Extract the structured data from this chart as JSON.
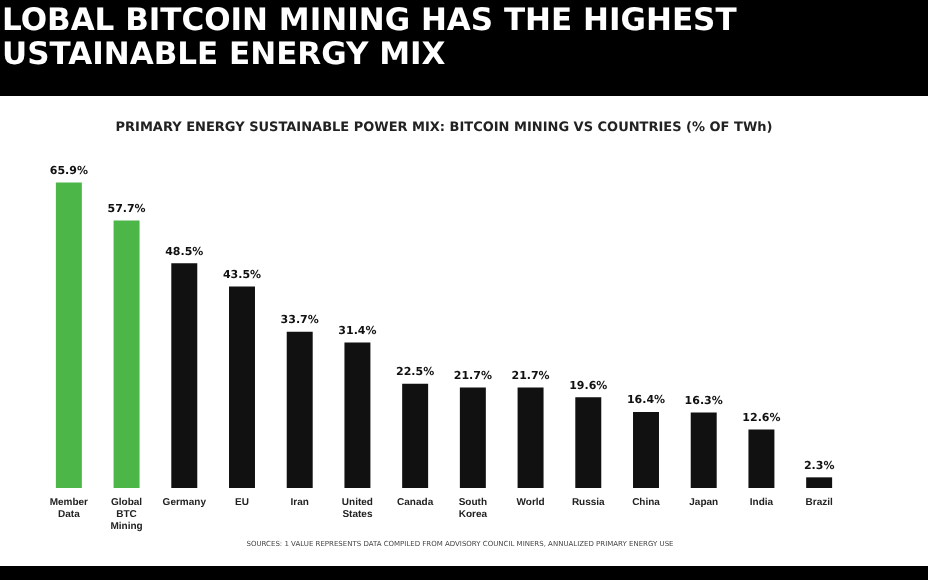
{
  "chart_data": {
    "type": "bar",
    "title": "LOBAL BITCOIN MINING HAS THE HIGHEST\nUSTAINABLE ENERGY MIX",
    "subtitle": "PRIMARY ENERGY SUSTAINABLE POWER MIX: BITCOIN MINING VS COUNTRIES (% OF TWh)",
    "categories": [
      "Member Data",
      "Global BTC Mining",
      "Germany",
      "EU",
      "Iran",
      "United States",
      "Canada",
      "South Korea",
      "World",
      "Russia",
      "China",
      "Japan",
      "India",
      "Brazil"
    ],
    "values": [
      65.9,
      57.7,
      48.5,
      43.5,
      33.7,
      31.4,
      22.5,
      21.7,
      21.7,
      19.6,
      16.4,
      16.3,
      12.6,
      2.3
    ],
    "colors": [
      "#4cb748",
      "#4cb748",
      "#111111",
      "#111111",
      "#111111",
      "#111111",
      "#111111",
      "#111111",
      "#111111",
      "#111111",
      "#111111",
      "#111111",
      "#111111",
      "#111111"
    ],
    "value_labels": [
      "65.9%",
      "57.7%",
      "48.5%",
      "43.5%",
      "33.7%",
      "31.4%",
      "22.5%",
      "21.7%",
      "21.7%",
      "19.6%",
      "16.4%",
      "16.3%",
      "12.6%",
      "2.3%"
    ],
    "grid": false,
    "legend": false,
    "annotations": [
      "SOURCES: 1 VALUE REPRESENTS DATA COMPILED FROM ADVISORY COUNCIL MINERS, ANNUALIZED PRIMARY ENERGY USE"
    ]
  }
}
